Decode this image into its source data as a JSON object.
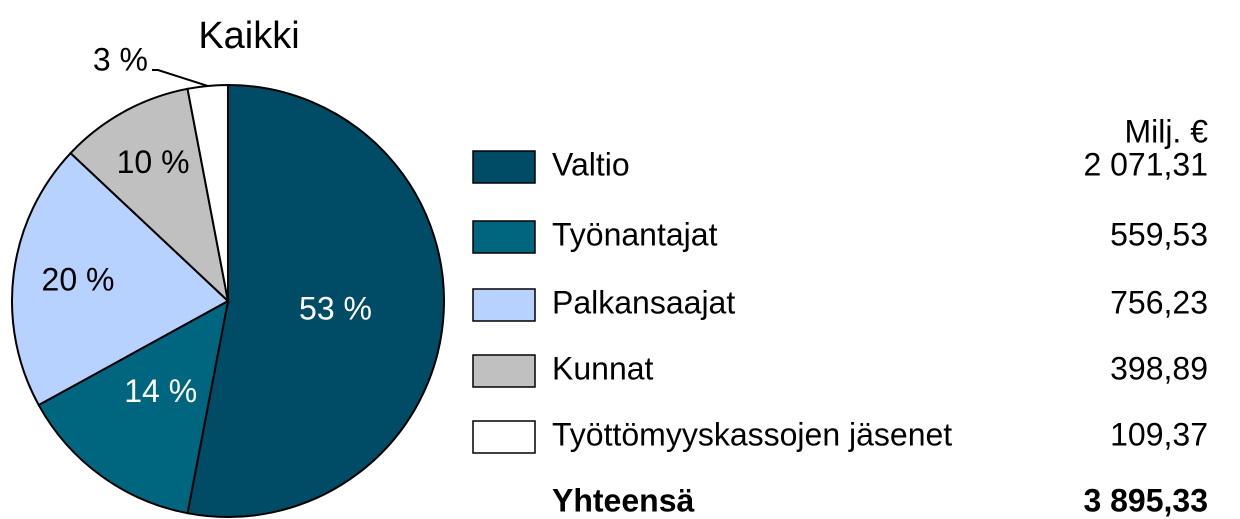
{
  "chart_data": {
    "type": "pie",
    "title": "Kaikki",
    "categories": [
      "Valtio",
      "Työnantajat",
      "Palkansaajat",
      "Kunnat",
      "Työttömyyskassojen jäsenet"
    ],
    "values": [
      53,
      14,
      20,
      10,
      3
    ],
    "value_labels": [
      "53 %",
      "14 %",
      "20 %",
      "10 %",
      "3 %"
    ],
    "colors": [
      "#004c66",
      "#006680",
      "#b8d2ff",
      "#c0c0c0",
      "#ffffff"
    ],
    "amount_header": "Milj. €",
    "amounts": [
      "2 071,31",
      "559,53",
      "756,23",
      "398,89",
      "109,37"
    ],
    "total_label": "Yhteensä",
    "total": "3 895,33"
  }
}
